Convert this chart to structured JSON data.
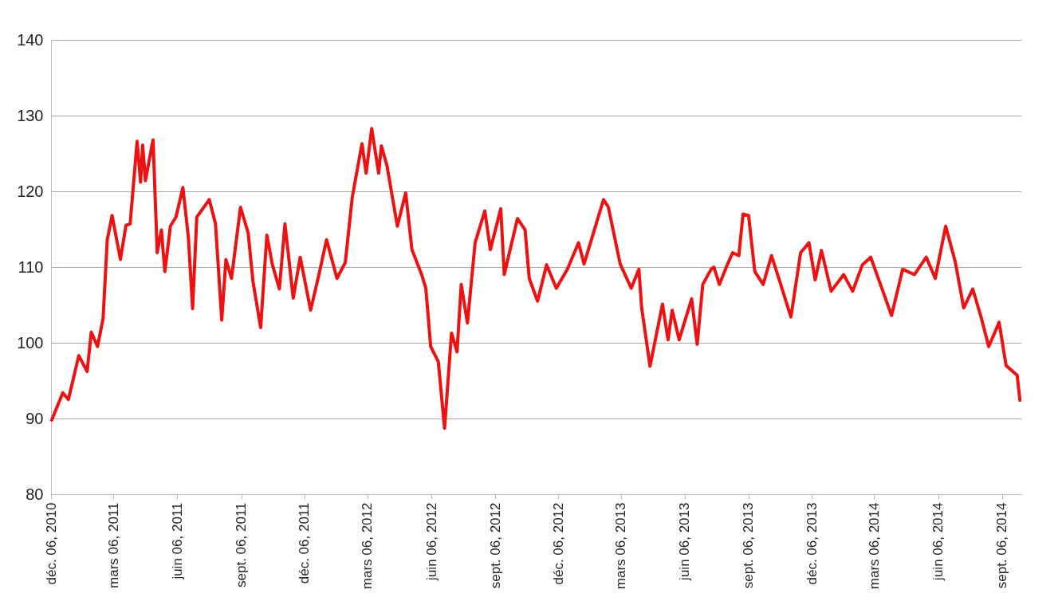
{
  "chart_data": {
    "type": "line",
    "x": [
      "2010-12-07",
      "2010-12-23",
      "2010-12-31",
      "2011-01-15",
      "2011-01-27",
      "2011-02-02",
      "2011-02-11",
      "2011-02-19",
      "2011-02-25",
      "2011-03-04",
      "2011-03-16",
      "2011-03-24",
      "2011-03-30",
      "2011-04-09",
      "2011-04-14",
      "2011-04-17",
      "2011-04-21",
      "2011-05-02",
      "2011-05-08",
      "2011-05-14",
      "2011-05-19",
      "2011-05-27",
      "2011-06-04",
      "2011-06-14",
      "2011-06-22",
      "2011-06-28",
      "2011-07-04",
      "2011-07-22",
      "2011-07-31",
      "2011-08-09",
      "2011-08-15",
      "2011-08-23",
      "2011-09-05",
      "2011-09-16",
      "2011-09-23",
      "2011-10-04",
      "2011-10-13",
      "2011-10-21",
      "2011-10-31",
      "2011-11-08",
      "2011-11-20",
      "2011-11-30",
      "2011-12-15",
      "2011-12-27",
      "2012-01-07",
      "2012-01-22",
      "2012-02-03",
      "2012-02-13",
      "2012-02-27",
      "2012-03-04",
      "2012-03-12",
      "2012-03-22",
      "2012-03-26",
      "2012-04-03",
      "2012-04-18",
      "2012-04-30",
      "2012-05-09",
      "2012-05-23",
      "2012-05-29",
      "2012-06-05",
      "2012-06-16",
      "2012-06-25",
      "2012-07-05",
      "2012-07-13",
      "2012-07-19",
      "2012-07-28",
      "2012-08-08",
      "2012-08-22",
      "2012-08-30",
      "2012-09-14",
      "2012-09-19",
      "2012-10-08",
      "2012-10-19",
      "2012-10-25",
      "2012-11-06",
      "2012-11-19",
      "2012-12-03",
      "2012-12-19",
      "2013-01-04",
      "2013-01-12",
      "2013-02-09",
      "2013-02-16",
      "2013-03-05",
      "2013-03-21",
      "2013-04-01",
      "2013-04-05",
      "2013-04-17",
      "2013-05-05",
      "2013-05-13",
      "2013-05-19",
      "2013-05-29",
      "2013-06-16",
      "2013-06-24",
      "2013-07-02",
      "2013-07-14",
      "2013-07-18",
      "2013-07-26",
      "2013-08-05",
      "2013-08-14",
      "2013-08-23",
      "2013-08-29",
      "2013-09-06",
      "2013-09-15",
      "2013-09-27",
      "2013-10-09",
      "2013-10-21",
      "2013-11-06",
      "2013-11-20",
      "2013-12-02",
      "2013-12-11",
      "2013-12-20",
      "2014-01-03",
      "2014-01-21",
      "2014-02-03",
      "2014-02-17",
      "2014-03-01",
      "2014-03-17",
      "2014-03-31",
      "2014-04-16",
      "2014-05-03",
      "2014-05-20",
      "2014-06-02",
      "2014-06-17",
      "2014-07-01",
      "2014-07-13",
      "2014-07-26",
      "2014-08-07",
      "2014-08-18",
      "2014-09-02",
      "2014-09-12",
      "2014-09-28",
      "2014-10-02"
    ],
    "series": [
      {
        "color": "#ee1111",
        "values": [
          89.8,
          93.4,
          92.5,
          98.3,
          96.2,
          101.4,
          99.5,
          103.2,
          113.6,
          116.8,
          111.0,
          115.5,
          115.7,
          126.6,
          121.2,
          126.1,
          121.4,
          126.8,
          111.9,
          114.9,
          109.4,
          115.4,
          116.6,
          120.5,
          113.8,
          104.5,
          116.6,
          118.9,
          115.7,
          103.0,
          111.0,
          108.5,
          117.9,
          114.5,
          108.1,
          102.0,
          114.2,
          110.3,
          107.1,
          115.7,
          105.9,
          111.3,
          104.3,
          109.0,
          113.6,
          108.5,
          110.6,
          119.2,
          126.3,
          122.4,
          128.3,
          122.4,
          126.0,
          123.4,
          115.4,
          119.8,
          112.3,
          109.0,
          107.2,
          99.5,
          97.5,
          88.7,
          101.3,
          98.8,
          107.7,
          102.6,
          113.2,
          117.4,
          112.3,
          117.7,
          109.0,
          116.4,
          114.9,
          108.5,
          105.5,
          110.3,
          107.2,
          109.7,
          113.2,
          110.4,
          118.9,
          117.9,
          110.4,
          107.2,
          109.7,
          104.6,
          96.9,
          105.1,
          100.4,
          104.3,
          100.4,
          105.8,
          99.8,
          107.7,
          109.7,
          110.0,
          107.7,
          110.0,
          111.9,
          111.5,
          117.0,
          116.8,
          109.4,
          107.7,
          111.5,
          108.1,
          103.4,
          111.9,
          113.2,
          108.3,
          112.2,
          106.8,
          109.0,
          106.8,
          110.3,
          111.3,
          107.2,
          103.6,
          109.7,
          109.0,
          111.3,
          108.5,
          115.4,
          110.6,
          104.6,
          107.1,
          103.4,
          99.5,
          102.7,
          97.0,
          95.7,
          92.4
        ]
      }
    ],
    "xlim": [
      "2010-12-06",
      "2014-10-04"
    ],
    "xticks": [
      {
        "value": "2010-12-06",
        "label": "déc. 06, 2010"
      },
      {
        "value": "2011-03-06",
        "label": "mars 06, 2011"
      },
      {
        "value": "2011-06-06",
        "label": "juin 06, 2011"
      },
      {
        "value": "2011-09-06",
        "label": "sept. 06, 2011"
      },
      {
        "value": "2011-12-06",
        "label": "déc. 06, 2011"
      },
      {
        "value": "2012-03-06",
        "label": "mars 06, 2012"
      },
      {
        "value": "2012-06-06",
        "label": "juin 06, 2012"
      },
      {
        "value": "2012-09-06",
        "label": "sept. 06, 2012"
      },
      {
        "value": "2012-12-06",
        "label": "déc. 06, 2012"
      },
      {
        "value": "2013-03-06",
        "label": "mars 06, 2013"
      },
      {
        "value": "2013-06-06",
        "label": "juin 06, 2013"
      },
      {
        "value": "2013-09-06",
        "label": "sept. 06, 2013"
      },
      {
        "value": "2013-12-06",
        "label": "déc. 06, 2013"
      },
      {
        "value": "2014-03-06",
        "label": "mars 06, 2014"
      },
      {
        "value": "2014-06-06",
        "label": "juin 06, 2014"
      },
      {
        "value": "2014-09-06",
        "label": "sept. 06, 2014"
      }
    ],
    "ylim": [
      80,
      140
    ],
    "yticks": [
      80,
      90,
      100,
      110,
      120,
      130,
      140
    ],
    "grid": "y",
    "line_style": "solid"
  }
}
